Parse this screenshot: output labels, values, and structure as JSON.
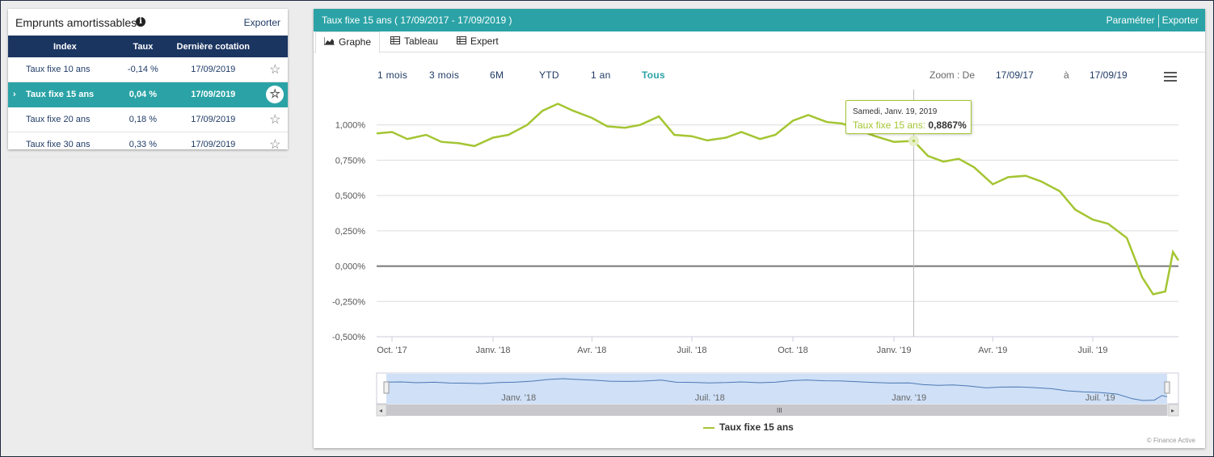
{
  "left": {
    "title": "Emprunts amortissables",
    "info_icon": "info-icon",
    "export_label": "Exporter",
    "columns": [
      "Index",
      "Taux",
      "Dernière cotation"
    ],
    "rows": [
      {
        "name": "Taux fixe 10 ans",
        "rate": "-0,14 %",
        "date": "17/09/2019",
        "active": false
      },
      {
        "name": "Taux fixe 15 ans",
        "rate": "0,04 %",
        "date": "17/09/2019",
        "active": true
      },
      {
        "name": "Taux fixe 20 ans",
        "rate": "0,18 %",
        "date": "17/09/2019",
        "active": false
      },
      {
        "name": "Taux fixe 30 ans",
        "rate": "0,33 %",
        "date": "17/09/2019",
        "active": false
      }
    ],
    "active_arrow": "›",
    "star_glyph": "☆"
  },
  "right": {
    "title": "Taux fixe 15 ans ( 17/09/2017 - 17/09/2019 )",
    "param_label": "Paramétrer",
    "export_label": "Exporter",
    "tabs": [
      {
        "label": "Graphe",
        "icon": "area-chart-icon"
      },
      {
        "label": "Tableau",
        "icon": "table-icon"
      },
      {
        "label": "Expert",
        "icon": "table-icon"
      }
    ],
    "range_buttons": [
      "1 mois",
      "3 mois",
      "6M",
      "YTD",
      "1 an",
      "Tous"
    ],
    "selected_range": "Tous",
    "zoom_label": "Zoom : De",
    "zoom_from": "17/09/17",
    "zoom_to_label": "à",
    "zoom_to": "17/09/19",
    "tooltip": {
      "date": "Samedi, Janv. 19, 2019",
      "series": "Taux fixe 15 ans",
      "value": "0,8867%"
    },
    "legend": "Taux fixe 15 ans",
    "credits": "© Finance Active",
    "navigator_labels": [
      "Janv. '18",
      "Juil. '18",
      "Janv. '19",
      "Juil. '19"
    ],
    "scrollbar_grip": "III"
  },
  "colors": {
    "accent": "#2ba3a6",
    "header": "#1b3561",
    "series": "#a4c532"
  },
  "chart_data": {
    "type": "line",
    "title": "",
    "xlabel": "",
    "ylabel": "",
    "x_ticks": [
      "Oct. '17",
      "Janv. '18",
      "Avr. '18",
      "Juil. '18",
      "Oct. '18",
      "Janv. '19",
      "Avr. '19",
      "Juil. '19"
    ],
    "y_ticks": [
      "1,000%",
      "0,750%",
      "0,500%",
      "0,250%",
      "0,000%",
      "-0,250%",
      "-0,500%"
    ],
    "ylim": [
      -0.5,
      1.25
    ],
    "xlim": [
      "2017-09-17",
      "2019-09-17"
    ],
    "grid": true,
    "legend_position": "bottom-center",
    "series": [
      {
        "name": "Taux fixe 15 ans",
        "points": [
          [
            "2017-09-17",
            0.94
          ],
          [
            "2017-10-01",
            0.95
          ],
          [
            "2017-10-15",
            0.9
          ],
          [
            "2017-11-01",
            0.93
          ],
          [
            "2017-11-15",
            0.88
          ],
          [
            "2017-12-01",
            0.87
          ],
          [
            "2017-12-15",
            0.85
          ],
          [
            "2018-01-01",
            0.91
          ],
          [
            "2018-01-15",
            0.93
          ],
          [
            "2018-02-01",
            1.0
          ],
          [
            "2018-02-15",
            1.1
          ],
          [
            "2018-03-01",
            1.15
          ],
          [
            "2018-03-15",
            1.1
          ],
          [
            "2018-04-01",
            1.05
          ],
          [
            "2018-04-15",
            0.99
          ],
          [
            "2018-05-01",
            0.98
          ],
          [
            "2018-05-15",
            1.0
          ],
          [
            "2018-06-01",
            1.06
          ],
          [
            "2018-06-15",
            0.93
          ],
          [
            "2018-07-01",
            0.92
          ],
          [
            "2018-07-15",
            0.89
          ],
          [
            "2018-08-01",
            0.91
          ],
          [
            "2018-08-15",
            0.95
          ],
          [
            "2018-09-01",
            0.9
          ],
          [
            "2018-09-15",
            0.93
          ],
          [
            "2018-10-01",
            1.03
          ],
          [
            "2018-10-15",
            1.07
          ],
          [
            "2018-11-01",
            1.02
          ],
          [
            "2018-11-15",
            1.01
          ],
          [
            "2018-12-01",
            0.96
          ],
          [
            "2018-12-15",
            0.92
          ],
          [
            "2019-01-01",
            0.88
          ],
          [
            "2019-01-19",
            0.8867
          ],
          [
            "2019-02-01",
            0.78
          ],
          [
            "2019-02-15",
            0.74
          ],
          [
            "2019-03-01",
            0.76
          ],
          [
            "2019-03-15",
            0.7
          ],
          [
            "2019-04-01",
            0.58
          ],
          [
            "2019-04-15",
            0.63
          ],
          [
            "2019-05-01",
            0.64
          ],
          [
            "2019-05-15",
            0.6
          ],
          [
            "2019-06-01",
            0.53
          ],
          [
            "2019-06-15",
            0.4
          ],
          [
            "2019-07-01",
            0.33
          ],
          [
            "2019-07-15",
            0.3
          ],
          [
            "2019-08-01",
            0.2
          ],
          [
            "2019-08-15",
            -0.08
          ],
          [
            "2019-08-25",
            -0.2
          ],
          [
            "2019-09-05",
            -0.18
          ],
          [
            "2019-09-12",
            0.1
          ],
          [
            "2019-09-17",
            0.04
          ]
        ]
      }
    ]
  }
}
